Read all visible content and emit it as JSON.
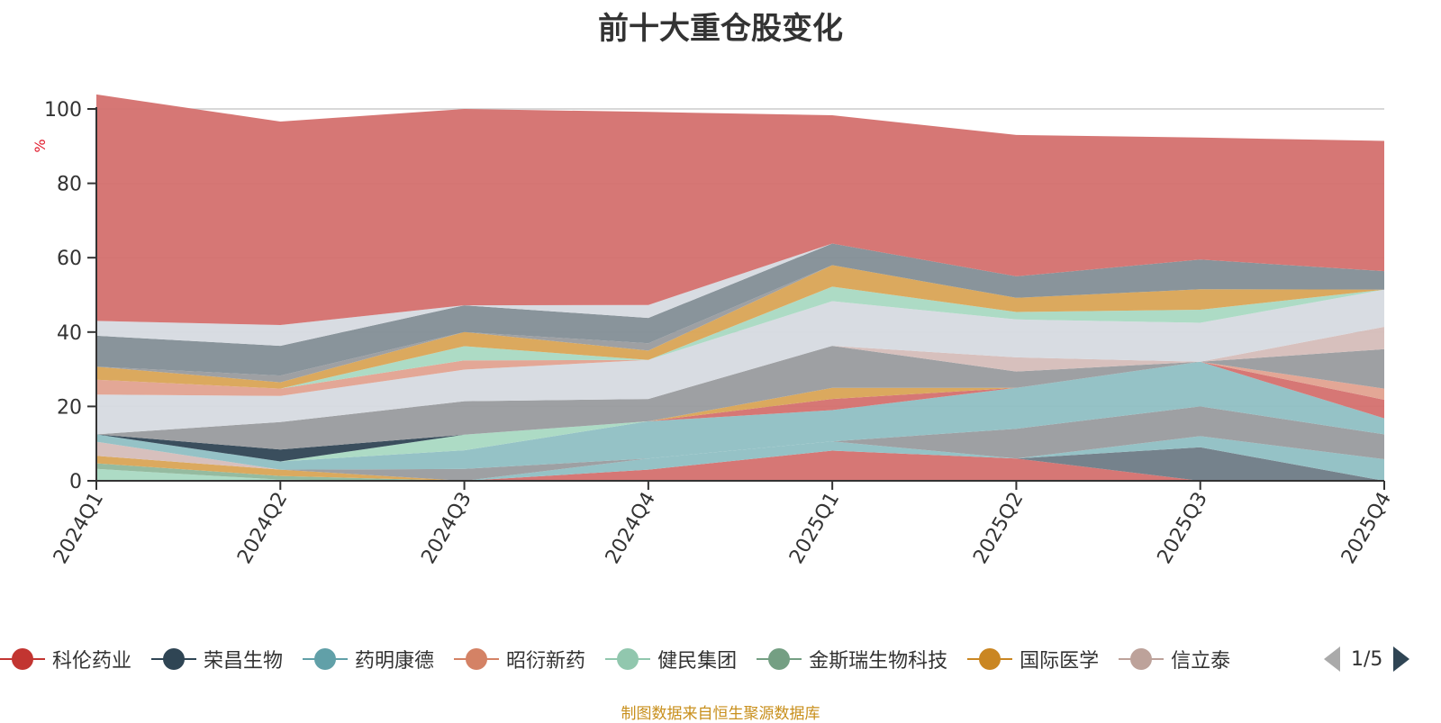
{
  "colors": {
    "axis": "#333333",
    "grid": "#cccccc",
    "ylabel": "#e0182a",
    "source": "#c88f1c",
    "pager_active": "#2f4554",
    "pager_inactive": "#aaaaaa"
  },
  "legend": {
    "items": [
      {
        "name": "科伦药业",
        "color": "#c23531"
      },
      {
        "name": "荣昌生物",
        "color": "#2f4554"
      },
      {
        "name": "药明康德",
        "color": "#61a0a8"
      },
      {
        "name": "昭衍新药",
        "color": "#d48265"
      },
      {
        "name": "健民集团",
        "color": "#91c7ae"
      },
      {
        "name": "金斯瑞生物科技",
        "color": "#749f83"
      },
      {
        "name": "国际医学",
        "color": "#ca8622"
      },
      {
        "name": "信立泰",
        "color": "#bda29a"
      }
    ],
    "pager": "1/5"
  },
  "footer": {
    "source": "制图数据来自恒生聚源数据库"
  },
  "chart_data": {
    "type": "area",
    "stacked": true,
    "title": "前十大重仓股变化",
    "ylabel": "%",
    "ylim": [
      0,
      100
    ],
    "yticks": [
      0,
      20,
      40,
      60,
      80,
      100
    ],
    "grid": true,
    "legend_position": "bottom",
    "categories": [
      "2024Q1",
      "2024Q2",
      "2024Q3",
      "2024Q4",
      "2025Q1",
      "2025Q2",
      "2025Q3",
      "2025Q4"
    ],
    "series": [
      {
        "values": [
          3.2,
          0.3,
          0,
          0,
          0,
          0,
          0,
          0
        ],
        "color": "#a9d9c2"
      },
      {
        "values": [
          1.5,
          1.0,
          0,
          0,
          0,
          0,
          0,
          0
        ],
        "color": "#8fb79b"
      },
      {
        "values": [
          0,
          0,
          0,
          3.0,
          8.1,
          6.0,
          0,
          0
        ],
        "color": "#d4706e"
      },
      {
        "values": [
          0,
          0,
          0,
          0,
          0,
          0,
          9.0,
          0
        ],
        "color": "#6e7b86"
      },
      {
        "values": [
          0,
          0,
          0,
          3.0,
          2.5,
          0,
          3.0,
          5.8
        ],
        "color": "#8fbfc3"
      },
      {
        "values": [
          2.0,
          1.7,
          0,
          0,
          0,
          0,
          0,
          0
        ],
        "color": "#d9a455"
      },
      {
        "values": [
          0,
          0,
          3.2,
          0,
          0,
          8.0,
          8.0,
          6.7
        ],
        "color": "#999b9e"
      },
      {
        "values": [
          3.8,
          0,
          0,
          0,
          0,
          0,
          0,
          0
        ],
        "color": "#d5bdb9"
      },
      {
        "values": [
          2.0,
          2.2,
          5.0,
          10.0,
          8.4,
          11.0,
          12.0,
          4.3
        ],
        "color": "#8fbfc3"
      },
      {
        "values": [
          0,
          0,
          4.2,
          0,
          0,
          0,
          0,
          0
        ],
        "color": "#a9d9c2"
      },
      {
        "values": [
          0,
          0,
          0,
          0,
          3.0,
          0,
          0,
          5.0
        ],
        "color": "#d4706e"
      },
      {
        "values": [
          0,
          0,
          0,
          0,
          0,
          0,
          0,
          3.0
        ],
        "color": "#e2a290"
      },
      {
        "values": [
          0,
          0,
          0,
          0,
          3.0,
          0,
          0,
          0
        ],
        "color": "#d9a455"
      },
      {
        "values": [
          0,
          3.2,
          0,
          0,
          0,
          0,
          0,
          0
        ],
        "color": "#2f4554"
      },
      {
        "values": [
          0,
          0,
          0,
          0,
          0,
          0,
          0,
          10.6
        ],
        "color": "#999b9e"
      },
      {
        "values": [
          0,
          7.4,
          9.0,
          6.0,
          11.3,
          4.4,
          0,
          0
        ],
        "color": "#999b9e"
      },
      {
        "values": [
          0,
          0,
          0,
          0,
          0,
          3.8,
          0,
          0
        ],
        "color": "#d5bdb9"
      },
      {
        "values": [
          0,
          0,
          0,
          0,
          0,
          0,
          0,
          6.0
        ],
        "color": "#d5bdb9"
      },
      {
        "values": [
          10.7,
          7.0,
          8.5,
          10.5,
          12.0,
          10.2,
          10.5,
          10.0
        ],
        "color": "#d6dae0"
      },
      {
        "values": [
          4.0,
          2.0,
          2.5,
          0,
          0,
          0,
          0,
          0
        ],
        "color": "#e2a290"
      },
      {
        "values": [
          0,
          0,
          3.8,
          0,
          3.9,
          2.0,
          3.5,
          0
        ],
        "color": "#a9d9c2"
      },
      {
        "values": [
          3.5,
          1.7,
          3.8,
          2.5,
          5.8,
          3.8,
          5.5,
          0
        ],
        "color": "#d9a455"
      },
      {
        "values": [
          0,
          1.8,
          0,
          2.0,
          0,
          0,
          0,
          0
        ],
        "color": "#999b9e"
      },
      {
        "values": [
          8.3,
          8.0,
          7.2,
          6.8,
          5.8,
          5.8,
          8.0,
          5.0
        ],
        "color": "#838e96"
      },
      {
        "values": [
          4.0,
          5.6,
          0,
          3.5,
          0,
          0,
          0,
          0
        ],
        "color": "#d6dae0"
      },
      {
        "values": [
          60.9,
          54.7,
          52.8,
          51.9,
          34.5,
          38.0,
          32.8,
          35.0
        ],
        "color": "#d4706e"
      }
    ]
  }
}
